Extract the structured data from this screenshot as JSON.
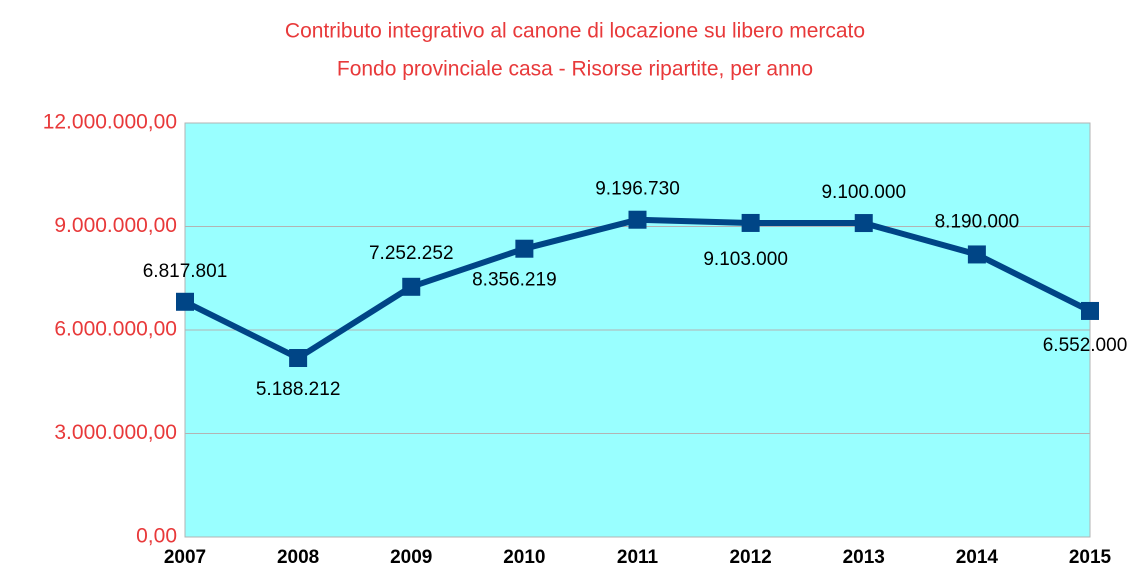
{
  "chart_data": {
    "type": "line",
    "title": "Contributo integrativo al canone di locazione su libero mercato",
    "subtitle": "Fondo provinciale casa - Risorse ripartite, per anno",
    "categories": [
      "2007",
      "2008",
      "2009",
      "2010",
      "2011",
      "2012",
      "2013",
      "2014",
      "2015"
    ],
    "series": [
      {
        "name": "Risorse ripartite",
        "color": "#004586",
        "values": [
          6817801,
          5188212,
          7252252,
          8356219,
          9196730,
          9103000,
          9100000,
          8190000,
          6552000
        ],
        "value_labels": [
          "6.817.801",
          "5.188.212",
          "7.252.252",
          "8.356.219",
          "9.196.730",
          "9.103.000",
          "9.100.000",
          "8.190.000",
          "6.552.000"
        ]
      }
    ],
    "ylim": [
      0,
      12000000
    ],
    "yticks": [
      {
        "value": 0,
        "label": "0,00"
      },
      {
        "value": 3000000,
        "label": "3.000.000,00"
      },
      {
        "value": 6000000,
        "label": "6.000.000,00"
      },
      {
        "value": 9000000,
        "label": "9.000.000,00"
      },
      {
        "value": 12000000,
        "label": "12.000.000,00"
      }
    ],
    "grid": true
  }
}
